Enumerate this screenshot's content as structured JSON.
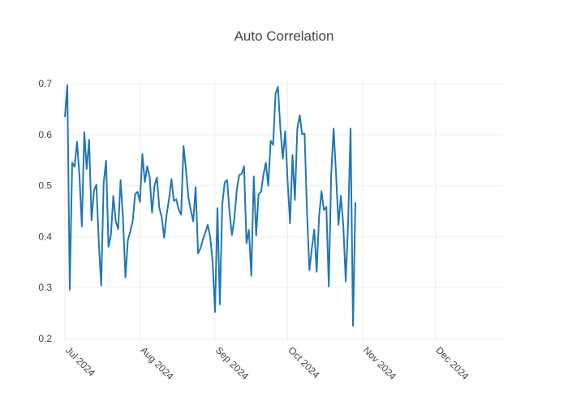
{
  "chart_data": {
    "type": "line",
    "title": "Auto Correlation",
    "xlabel": "",
    "ylabel": "",
    "x_start": "2024-07-01",
    "x_step": "1 day",
    "xlim": [
      "2024-07-01",
      "2024-12-29"
    ],
    "ylim": [
      0.195,
      0.705
    ],
    "y_ticks": [
      0.2,
      0.3,
      0.4,
      0.5,
      0.6,
      0.7
    ],
    "y_tick_labels": [
      "0.2",
      "0.3",
      "0.4",
      "0.5",
      "0.6",
      "0.7"
    ],
    "x_ticks": [
      "2024-07-01",
      "2024-08-01",
      "2024-09-01",
      "2024-10-01",
      "2024-11-01",
      "2024-12-01"
    ],
    "x_tick_labels": [
      "Jul 2024",
      "Aug 2024",
      "Sep 2024",
      "Oct 2024",
      "Nov 2024",
      "Dec 2024"
    ],
    "grid": true,
    "legend": "none",
    "line_color": "#1f77b4",
    "series": [
      {
        "values": [
          0.635,
          0.697,
          0.296,
          0.545,
          0.537,
          0.586,
          0.52,
          0.42,
          0.605,
          0.533,
          0.59,
          0.432,
          0.49,
          0.502,
          0.388,
          0.304,
          0.505,
          0.549,
          0.38,
          0.403,
          0.48,
          0.43,
          0.415,
          0.511,
          0.435,
          0.32,
          0.393,
          0.41,
          0.43,
          0.483,
          0.488,
          0.468,
          0.562,
          0.507,
          0.538,
          0.517,
          0.447,
          0.5,
          0.516,
          0.456,
          0.438,
          0.398,
          0.443,
          0.473,
          0.513,
          0.47,
          0.473,
          0.453,
          0.443,
          0.578,
          0.532,
          0.477,
          0.452,
          0.43,
          0.497,
          0.367,
          0.377,
          0.394,
          0.408,
          0.423,
          0.4,
          0.352,
          0.252,
          0.456,
          0.267,
          0.463,
          0.506,
          0.511,
          0.448,
          0.403,
          0.436,
          0.492,
          0.521,
          0.523,
          0.538,
          0.387,
          0.413,
          0.323,
          0.518,
          0.402,
          0.483,
          0.488,
          0.521,
          0.545,
          0.5,
          0.588,
          0.58,
          0.68,
          0.694,
          0.612,
          0.553,
          0.607,
          0.508,
          0.426,
          0.56,
          0.472,
          0.612,
          0.638,
          0.601,
          0.602,
          0.449,
          0.334,
          0.377,
          0.414,
          0.331,
          0.44,
          0.489,
          0.452,
          0.458,
          0.302,
          0.522,
          0.612,
          0.523,
          0.423,
          0.48,
          0.422,
          0.312,
          0.43,
          0.612,
          0.225,
          0.467
        ]
      }
    ]
  }
}
